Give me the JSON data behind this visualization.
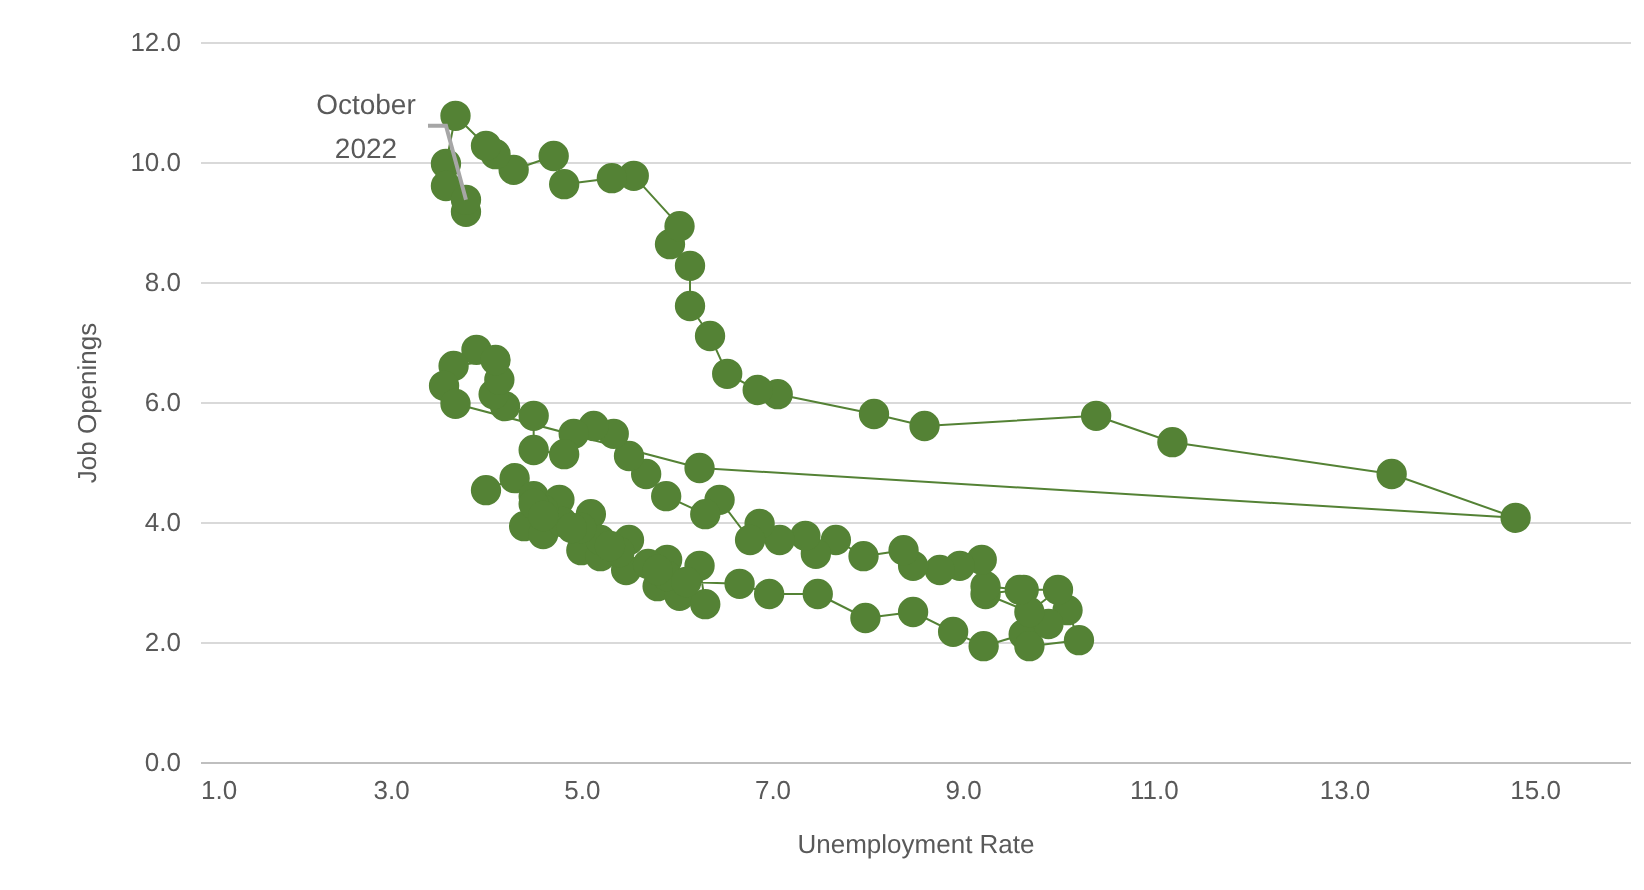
{
  "chart_data": {
    "type": "line",
    "xlabel": "Unemployment Rate",
    "ylabel": "Job Openings",
    "marker": "circle",
    "grid": "y",
    "xlim": [
      1,
      16
    ],
    "xticks": [
      {
        "value": 1,
        "label": "1.0"
      },
      {
        "value": 3,
        "label": "3.0"
      },
      {
        "value": 5,
        "label": "5.0"
      },
      {
        "value": 7,
        "label": "7.0"
      },
      {
        "value": 9,
        "label": "9.0"
      },
      {
        "value": 11,
        "label": "11.0"
      },
      {
        "value": 13,
        "label": "13.0"
      },
      {
        "value": 15,
        "label": "15.0"
      }
    ],
    "ylim": [
      0,
      12
    ],
    "yticks": [
      {
        "value": 0,
        "label": "0.0"
      },
      {
        "value": 2,
        "label": "2.0"
      },
      {
        "value": 4,
        "label": "4.0"
      },
      {
        "value": 6,
        "label": "6.0"
      },
      {
        "value": 8,
        "label": "8.0"
      },
      {
        "value": 10,
        "label": "10.0"
      },
      {
        "value": 12,
        "label": "12.0"
      }
    ],
    "annotations": [
      {
        "text": "October 2022",
        "x": 3.79,
        "y": 9.37
      }
    ],
    "series": [
      {
        "color": "#548235",
        "x": [
          4.0,
          4.3,
          4.5,
          4.4,
          4.77,
          4.6,
          5.1,
          5.0,
          5.2,
          5.5,
          5.47,
          5.9,
          5.8,
          6.03,
          6.3,
          6.24,
          5.9,
          5.7,
          5.4,
          5.2,
          5.0,
          4.8,
          4.6,
          4.5,
          4.6,
          4.9,
          5.3,
          5.8,
          6.1,
          6.66,
          6.97,
          7.48,
          7.98,
          8.48,
          8.9,
          9.22,
          9.64,
          9.7,
          10.22,
          10.1,
          9.9,
          9.64,
          10.0,
          9.7,
          9.24,
          9.6,
          9.24,
          9.2,
          8.97,
          8.76,
          8.48,
          8.38,
          7.96,
          7.67,
          7.46,
          7.35,
          7.08,
          6.87,
          6.77,
          6.45,
          6.3,
          5.89,
          5.68,
          5.5,
          5.34,
          5.13,
          4.92,
          4.82,
          4.5,
          4.5,
          4.2,
          4.08,
          4.14,
          3.9,
          4.1,
          3.66,
          3.56,
          3.68,
          6.24,
          14.8,
          13.5,
          11.2,
          10.4,
          8.6,
          8.07,
          7.06,
          6.85,
          6.53,
          6.35,
          6.14,
          6.14,
          5.93,
          6.03,
          5.55,
          5.32,
          4.82,
          4.71,
          4.29,
          4.1,
          4.0,
          3.68,
          3.58,
          3.58,
          3.79,
          3.79
        ],
        "values": [
          4.53,
          4.73,
          4.43,
          3.93,
          4.37,
          3.8,
          4.13,
          3.53,
          3.43,
          3.7,
          3.2,
          3.37,
          2.93,
          2.77,
          2.63,
          3.27,
          3.1,
          3.3,
          3.5,
          3.7,
          3.9,
          4.0,
          4.2,
          4.3,
          4.1,
          3.9,
          3.6,
          3.2,
          3.0,
          2.97,
          2.8,
          2.8,
          2.4,
          2.5,
          2.17,
          1.93,
          2.13,
          1.93,
          2.03,
          2.53,
          2.3,
          2.87,
          2.87,
          2.5,
          2.8,
          2.87,
          2.93,
          3.37,
          3.27,
          3.2,
          3.27,
          3.53,
          3.43,
          3.7,
          3.47,
          3.77,
          3.7,
          3.97,
          3.7,
          4.37,
          4.13,
          4.43,
          4.8,
          5.1,
          5.47,
          5.6,
          5.47,
          5.13,
          5.2,
          5.77,
          5.93,
          6.13,
          6.37,
          6.87,
          6.7,
          6.6,
          6.27,
          5.97,
          4.9,
          4.07,
          4.8,
          5.33,
          5.77,
          5.6,
          5.8,
          6.13,
          6.2,
          6.47,
          7.1,
          7.6,
          8.27,
          8.63,
          8.93,
          9.77,
          9.73,
          9.63,
          10.1,
          9.87,
          10.13,
          10.27,
          10.77,
          9.97,
          9.6,
          9.17,
          9.37
        ]
      }
    ]
  }
}
